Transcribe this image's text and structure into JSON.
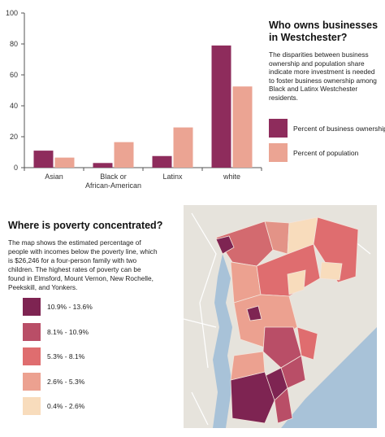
{
  "chart_data": {
    "type": "bar",
    "categories": [
      "Asian",
      "Black or African-American",
      "Latinx",
      "white"
    ],
    "category_lines": [
      [
        "Asian"
      ],
      [
        "Black or",
        "African-American"
      ],
      [
        "Latinx"
      ],
      [
        "white"
      ]
    ],
    "series": [
      {
        "name": "Percent of business ownership",
        "values": [
          11,
          3,
          7.5,
          79
        ],
        "color": "#8e2c5c"
      },
      {
        "name": "Percent of population",
        "values": [
          6.5,
          16.5,
          26,
          52.5
        ],
        "color": "#eba493"
      }
    ],
    "yticks": [
      0,
      20,
      40,
      60,
      80,
      100
    ],
    "ylim": [
      0,
      100
    ],
    "xlabel": "",
    "ylabel": "",
    "grid": false,
    "legend_placement": "right"
  },
  "business": {
    "title": "Who owns businesses in Westchester?",
    "description": "The disparities between business ownership and population share indicate more investment is needed to foster business ownership among Black and Latinx Westchester residents."
  },
  "poverty": {
    "title": "Where is poverty concentrated?",
    "description": "The map shows the estimated percentage of people with incomes below the poverty line, which is $26,246 for a four-person family with two children. The highest rates of poverty can be found in Elmsford, Mount Vernon, New Rochelle, Peekskill, and Yonkers.",
    "legend": [
      {
        "label": "10.9% - 13.6%",
        "color": "#7e2452"
      },
      {
        "label": "8.1% - 10.9%",
        "color": "#b94e67"
      },
      {
        "label": "5.3% - 8.1%",
        "color": "#df6d6f"
      },
      {
        "label": "2.6% - 5.3%",
        "color": "#eca190"
      },
      {
        "label": "0.4% - 2.6%",
        "color": "#f8dcbc"
      }
    ]
  },
  "map_colors": {
    "land": "#e6e3dc",
    "water": "#a8c2d8",
    "roads": "#ffffff"
  }
}
